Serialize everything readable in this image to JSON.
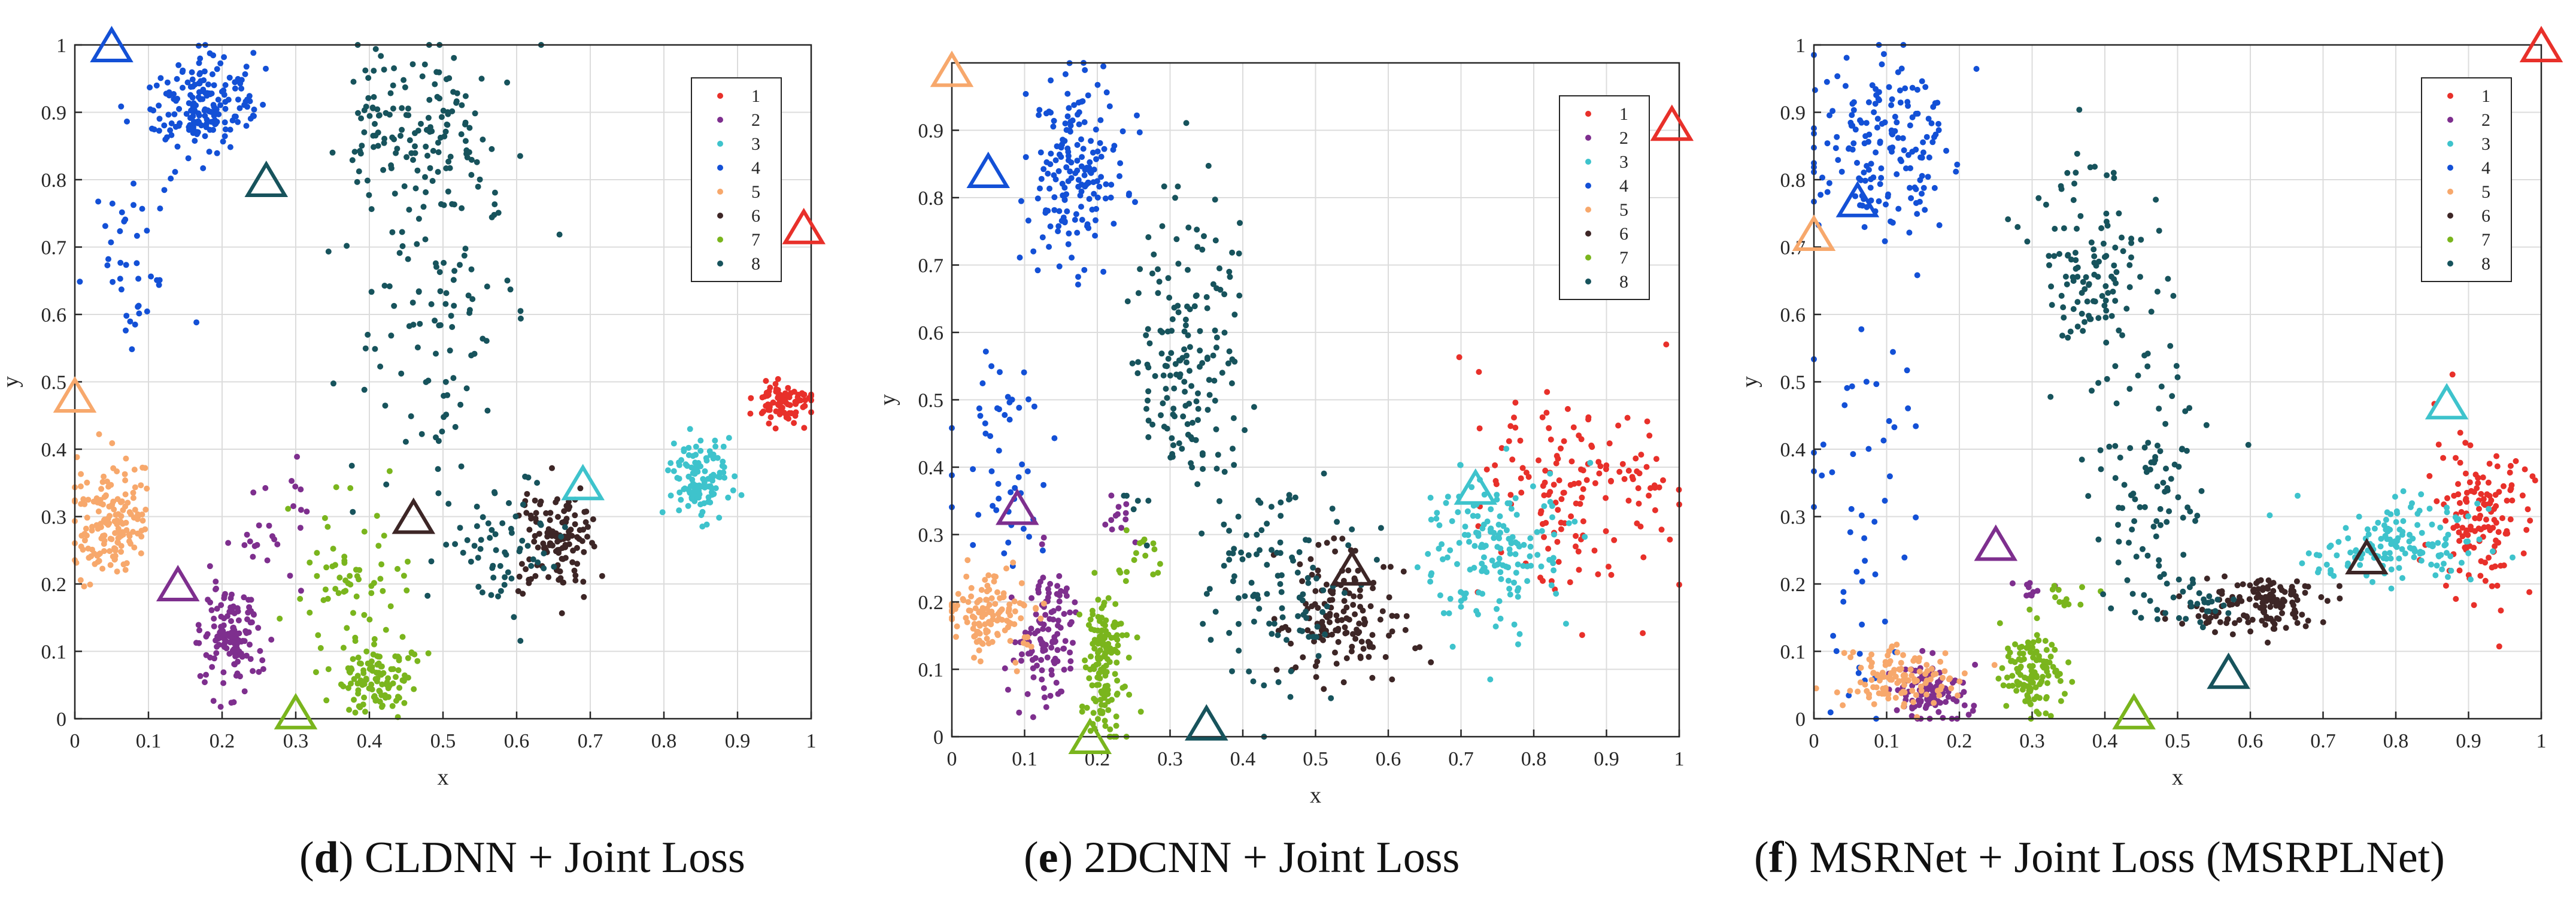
{
  "figure": {
    "captions": [
      {
        "letter": "d",
        "text": " CLDNN + Joint Loss"
      },
      {
        "letter": "e",
        "text": " 2DCNN + Joint Loss"
      },
      {
        "letter": "f",
        "text": " MSRNet + Joint Loss (MSRPLNet)"
      }
    ]
  },
  "chart_data": [
    {
      "type": "scatter",
      "title": "",
      "xlabel": "x",
      "ylabel": "y",
      "xlim": [
        0,
        1
      ],
      "ylim": [
        0,
        1
      ],
      "xticks": [
        0,
        0.1,
        0.2,
        0.3,
        0.4,
        0.5,
        0.6,
        0.7,
        0.8,
        0.9,
        1
      ],
      "yticks": [
        0,
        0.1,
        0.2,
        0.3,
        0.4,
        0.5,
        0.6,
        0.7,
        0.8,
        0.9,
        1
      ],
      "xtick_labels": [
        "0",
        "0.1",
        "0.2",
        "0.3",
        "0.4",
        "0.5",
        "0.6",
        "0.7",
        "0.8",
        "0.9",
        "1"
      ],
      "ytick_labels": [
        "0",
        "0.1",
        "0.2",
        "0.3",
        "0.4",
        "0.5",
        "0.6",
        "0.7",
        "0.8",
        "0.9",
        "1"
      ],
      "grid": true,
      "legend": {
        "placement": "top-right",
        "entries": [
          "1",
          "2",
          "3",
          "4",
          "5",
          "6",
          "7",
          "8"
        ]
      },
      "series": [
        {
          "name": "1",
          "color": "#e8302a",
          "clusters": [
            {
              "cx": 0.96,
              "cy": 0.47,
              "sx": 0.02,
              "sy": 0.015,
              "n": 90
            }
          ]
        },
        {
          "name": "2",
          "color": "#7e2f8e",
          "clusters": [
            {
              "cx": 0.21,
              "cy": 0.12,
              "sx": 0.02,
              "sy": 0.035,
              "n": 140
            },
            {
              "cx": 0.27,
              "cy": 0.28,
              "sx": 0.03,
              "sy": 0.05,
              "n": 25
            }
          ]
        },
        {
          "name": "3",
          "color": "#3ec3cc",
          "clusters": [
            {
              "cx": 0.85,
              "cy": 0.36,
              "sx": 0.02,
              "sy": 0.03,
              "n": 120
            }
          ]
        },
        {
          "name": "4",
          "color": "#1350d6",
          "clusters": [
            {
              "cx": 0.17,
              "cy": 0.91,
              "sx": 0.035,
              "sy": 0.035,
              "n": 180
            },
            {
              "cx": 0.08,
              "cy": 0.68,
              "sx": 0.03,
              "sy": 0.07,
              "n": 40
            }
          ]
        },
        {
          "name": "5",
          "color": "#f7a86c",
          "clusters": [
            {
              "cx": 0.05,
              "cy": 0.29,
              "sx": 0.025,
              "sy": 0.045,
              "n": 160
            }
          ]
        },
        {
          "name": "6",
          "color": "#3d2626",
          "clusters": [
            {
              "cx": 0.655,
              "cy": 0.26,
              "sx": 0.025,
              "sy": 0.035,
              "n": 130
            }
          ]
        },
        {
          "name": "7",
          "color": "#7ab51d",
          "clusters": [
            {
              "cx": 0.41,
              "cy": 0.06,
              "sx": 0.025,
              "sy": 0.025,
              "n": 110
            },
            {
              "cx": 0.37,
              "cy": 0.2,
              "sx": 0.04,
              "sy": 0.07,
              "n": 60
            }
          ]
        },
        {
          "name": "8",
          "color": "#17535c",
          "clusters": [
            {
              "cx": 0.47,
              "cy": 0.88,
              "sx": 0.05,
              "sy": 0.05,
              "n": 130
            },
            {
              "cx": 0.49,
              "cy": 0.6,
              "sx": 0.05,
              "sy": 0.15,
              "n": 120
            },
            {
              "cx": 0.58,
              "cy": 0.26,
              "sx": 0.04,
              "sy": 0.05,
              "n": 60
            }
          ]
        }
      ],
      "triangles": [
        {
          "series": "1",
          "x": 0.99,
          "y": 0.73
        },
        {
          "series": "2",
          "x": 0.14,
          "y": 0.2
        },
        {
          "series": "3",
          "x": 0.69,
          "y": 0.35
        },
        {
          "series": "4",
          "x": 0.05,
          "y": 1.0
        },
        {
          "series": "5",
          "x": 0.0,
          "y": 0.48
        },
        {
          "series": "6",
          "x": 0.46,
          "y": 0.3
        },
        {
          "series": "7",
          "x": 0.3,
          "y": 0.01
        },
        {
          "series": "8",
          "x": 0.26,
          "y": 0.8
        }
      ]
    },
    {
      "type": "scatter",
      "title": "",
      "xlabel": "x",
      "ylabel": "y",
      "xlim": [
        0,
        1
      ],
      "ylim": [
        0,
        1
      ],
      "xticks": [
        0,
        0.1,
        0.2,
        0.3,
        0.4,
        0.5,
        0.6,
        0.7,
        0.8,
        0.9,
        1
      ],
      "yticks": [
        0,
        0.1,
        0.2,
        0.3,
        0.4,
        0.5,
        0.6,
        0.7,
        0.8,
        0.9
      ],
      "xtick_labels": [
        "0",
        "0.1",
        "0.2",
        "0.3",
        "0.4",
        "0.5",
        "0.6",
        "0.7",
        "0.8",
        "0.9",
        "1"
      ],
      "ytick_labels": [
        "0",
        "0.1",
        "0.2",
        "0.3",
        "0.4",
        "0.5",
        "0.6",
        "0.7",
        "0.8",
        "0.9"
      ],
      "grid": true,
      "legend": {
        "placement": "top-right",
        "entries": [
          "1",
          "2",
          "3",
          "4",
          "5",
          "6",
          "7",
          "8"
        ]
      },
      "series": [
        {
          "name": "1",
          "color": "#e8302a",
          "clusters": [
            {
              "cx": 0.86,
              "cy": 0.35,
              "sx": 0.07,
              "sy": 0.08,
              "n": 150
            }
          ]
        },
        {
          "name": "2",
          "color": "#7e2f8e",
          "clusters": [
            {
              "cx": 0.13,
              "cy": 0.15,
              "sx": 0.02,
              "sy": 0.05,
              "n": 120
            },
            {
              "cx": 0.23,
              "cy": 0.33,
              "sx": 0.01,
              "sy": 0.02,
              "n": 12
            }
          ]
        },
        {
          "name": "3",
          "color": "#3ec3cc",
          "clusters": [
            {
              "cx": 0.74,
              "cy": 0.28,
              "sx": 0.05,
              "sy": 0.06,
              "n": 160
            }
          ]
        },
        {
          "name": "4",
          "color": "#1350d6",
          "clusters": [
            {
              "cx": 0.17,
              "cy": 0.84,
              "sx": 0.03,
              "sy": 0.07,
              "n": 170
            },
            {
              "cx": 0.07,
              "cy": 0.4,
              "sx": 0.03,
              "sy": 0.1,
              "n": 50
            }
          ]
        },
        {
          "name": "5",
          "color": "#f7a86c",
          "clusters": [
            {
              "cx": 0.05,
              "cy": 0.18,
              "sx": 0.03,
              "sy": 0.03,
              "n": 130
            }
          ]
        },
        {
          "name": "6",
          "color": "#3d2626",
          "clusters": [
            {
              "cx": 0.54,
              "cy": 0.18,
              "sx": 0.04,
              "sy": 0.05,
              "n": 150
            }
          ]
        },
        {
          "name": "7",
          "color": "#7ab51d",
          "clusters": [
            {
              "cx": 0.21,
              "cy": 0.1,
              "sx": 0.015,
              "sy": 0.06,
              "n": 150
            },
            {
              "cx": 0.26,
              "cy": 0.27,
              "sx": 0.015,
              "sy": 0.02,
              "n": 15
            }
          ]
        },
        {
          "name": "8",
          "color": "#17535c",
          "clusters": [
            {
              "cx": 0.32,
              "cy": 0.55,
              "sx": 0.04,
              "sy": 0.12,
              "n": 170
            },
            {
              "cx": 0.45,
              "cy": 0.22,
              "sx": 0.05,
              "sy": 0.08,
              "n": 110
            }
          ]
        }
      ],
      "triangles": [
        {
          "series": "1",
          "x": 0.99,
          "y": 0.91
        },
        {
          "series": "2",
          "x": 0.09,
          "y": 0.34
        },
        {
          "series": "3",
          "x": 0.72,
          "y": 0.37
        },
        {
          "series": "4",
          "x": 0.05,
          "y": 0.84
        },
        {
          "series": "5",
          "x": 0.0,
          "y": 0.99
        },
        {
          "series": "6",
          "x": 0.55,
          "y": 0.25
        },
        {
          "series": "7",
          "x": 0.19,
          "y": 0.0
        },
        {
          "series": "8",
          "x": 0.35,
          "y": 0.02
        }
      ]
    },
    {
      "type": "scatter",
      "title": "",
      "xlabel": "x",
      "ylabel": "y",
      "xlim": [
        0,
        1
      ],
      "ylim": [
        0,
        1
      ],
      "xticks": [
        0,
        0.1,
        0.2,
        0.3,
        0.4,
        0.5,
        0.6,
        0.7,
        0.8,
        0.9,
        1
      ],
      "yticks": [
        0,
        0.1,
        0.2,
        0.3,
        0.4,
        0.5,
        0.6,
        0.7,
        0.8,
        0.9,
        1
      ],
      "xtick_labels": [
        "0",
        "0.1",
        "0.2",
        "0.3",
        "0.4",
        "0.5",
        "0.6",
        "0.7",
        "0.8",
        "0.9",
        "1"
      ],
      "ytick_labels": [
        "0",
        "0.1",
        "0.2",
        "0.3",
        "0.4",
        "0.5",
        "0.6",
        "0.7",
        "0.8",
        "0.9",
        "1"
      ],
      "grid": true,
      "legend": {
        "placement": "top-right",
        "entries": [
          "1",
          "2",
          "3",
          "4",
          "5",
          "6",
          "7",
          "8"
        ]
      },
      "series": [
        {
          "name": "1",
          "color": "#e8302a",
          "clusters": [
            {
              "cx": 0.92,
              "cy": 0.3,
              "sx": 0.035,
              "sy": 0.06,
              "n": 140
            }
          ]
        },
        {
          "name": "2",
          "color": "#7e2f8e",
          "clusters": [
            {
              "cx": 0.16,
              "cy": 0.04,
              "sx": 0.025,
              "sy": 0.02,
              "n": 110
            },
            {
              "cx": 0.3,
              "cy": 0.19,
              "sx": 0.01,
              "sy": 0.01,
              "n": 10
            }
          ]
        },
        {
          "name": "3",
          "color": "#3ec3cc",
          "clusters": [
            {
              "cx": 0.81,
              "cy": 0.26,
              "sx": 0.06,
              "sy": 0.03,
              "n": 150
            }
          ]
        },
        {
          "name": "4",
          "color": "#1350d6",
          "clusters": [
            {
              "cx": 0.1,
              "cy": 0.85,
              "sx": 0.05,
              "sy": 0.07,
              "n": 170
            },
            {
              "cx": 0.07,
              "cy": 0.3,
              "sx": 0.04,
              "sy": 0.15,
              "n": 50
            }
          ]
        },
        {
          "name": "5",
          "color": "#f7a86c",
          "clusters": [
            {
              "cx": 0.12,
              "cy": 0.06,
              "sx": 0.04,
              "sy": 0.02,
              "n": 120
            }
          ]
        },
        {
          "name": "6",
          "color": "#3d2626",
          "clusters": [
            {
              "cx": 0.61,
              "cy": 0.17,
              "sx": 0.05,
              "sy": 0.02,
              "n": 140
            }
          ]
        },
        {
          "name": "7",
          "color": "#7ab51d",
          "clusters": [
            {
              "cx": 0.3,
              "cy": 0.07,
              "sx": 0.02,
              "sy": 0.035,
              "n": 120
            },
            {
              "cx": 0.35,
              "cy": 0.18,
              "sx": 0.015,
              "sy": 0.01,
              "n": 12
            }
          ]
        },
        {
          "name": "8",
          "color": "#17535c",
          "clusters": [
            {
              "cx": 0.38,
              "cy": 0.68,
              "sx": 0.04,
              "sy": 0.08,
              "n": 120
            },
            {
              "cx": 0.46,
              "cy": 0.35,
              "sx": 0.04,
              "sy": 0.1,
              "n": 100
            },
            {
              "cx": 0.53,
              "cy": 0.17,
              "sx": 0.02,
              "sy": 0.02,
              "n": 25
            }
          ]
        }
      ],
      "triangles": [
        {
          "series": "1",
          "x": 1.0,
          "y": 1.0
        },
        {
          "series": "2",
          "x": 0.25,
          "y": 0.26
        },
        {
          "series": "3",
          "x": 0.87,
          "y": 0.47
        },
        {
          "series": "4",
          "x": 0.06,
          "y": 0.77
        },
        {
          "series": "5",
          "x": 0.0,
          "y": 0.72
        },
        {
          "series": "6",
          "x": 0.76,
          "y": 0.24
        },
        {
          "series": "7",
          "x": 0.44,
          "y": 0.01
        },
        {
          "series": "8",
          "x": 0.57,
          "y": 0.07
        }
      ]
    }
  ]
}
